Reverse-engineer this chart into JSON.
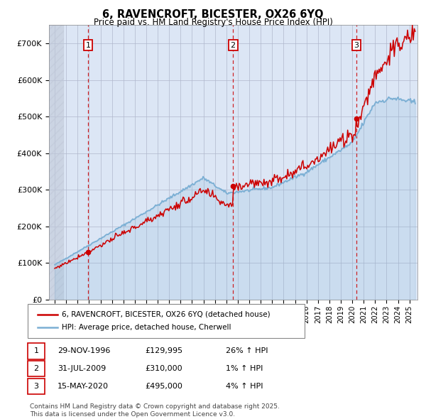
{
  "title": "6, RAVENCROFT, BICESTER, OX26 6YQ",
  "subtitle": "Price paid vs. HM Land Registry's House Price Index (HPI)",
  "ylim": [
    0,
    750000
  ],
  "yticks": [
    0,
    100000,
    200000,
    300000,
    400000,
    500000,
    600000,
    700000
  ],
  "ytick_labels": [
    "£0",
    "£100K",
    "£200K",
    "£300K",
    "£400K",
    "£500K",
    "£600K",
    "£700K"
  ],
  "x_start_year": 1994,
  "x_end_year": 2025,
  "hpi_color": "#7bafd4",
  "price_color": "#cc0000",
  "grid_color": "#b0b8cc",
  "bg_color": "#dce6f5",
  "sales": [
    {
      "date_num": 1996.92,
      "price": 129995,
      "label": "1",
      "note": "29-NOV-1996",
      "amount": "£129,995",
      "hpi_pct": "26% ↑ HPI"
    },
    {
      "date_num": 2009.58,
      "price": 310000,
      "label": "2",
      "note": "31-JUL-2009",
      "amount": "£310,000",
      "hpi_pct": "1% ↑ HPI"
    },
    {
      "date_num": 2020.37,
      "price": 495000,
      "label": "3",
      "note": "15-MAY-2020",
      "amount": "£495,000",
      "hpi_pct": "4% ↑ HPI"
    }
  ],
  "legend_property_label": "6, RAVENCROFT, BICESTER, OX26 6YQ (detached house)",
  "legend_hpi_label": "HPI: Average price, detached house, Cherwell",
  "footer_text": "Contains HM Land Registry data © Crown copyright and database right 2025.\nThis data is licensed under the Open Government Licence v3.0."
}
